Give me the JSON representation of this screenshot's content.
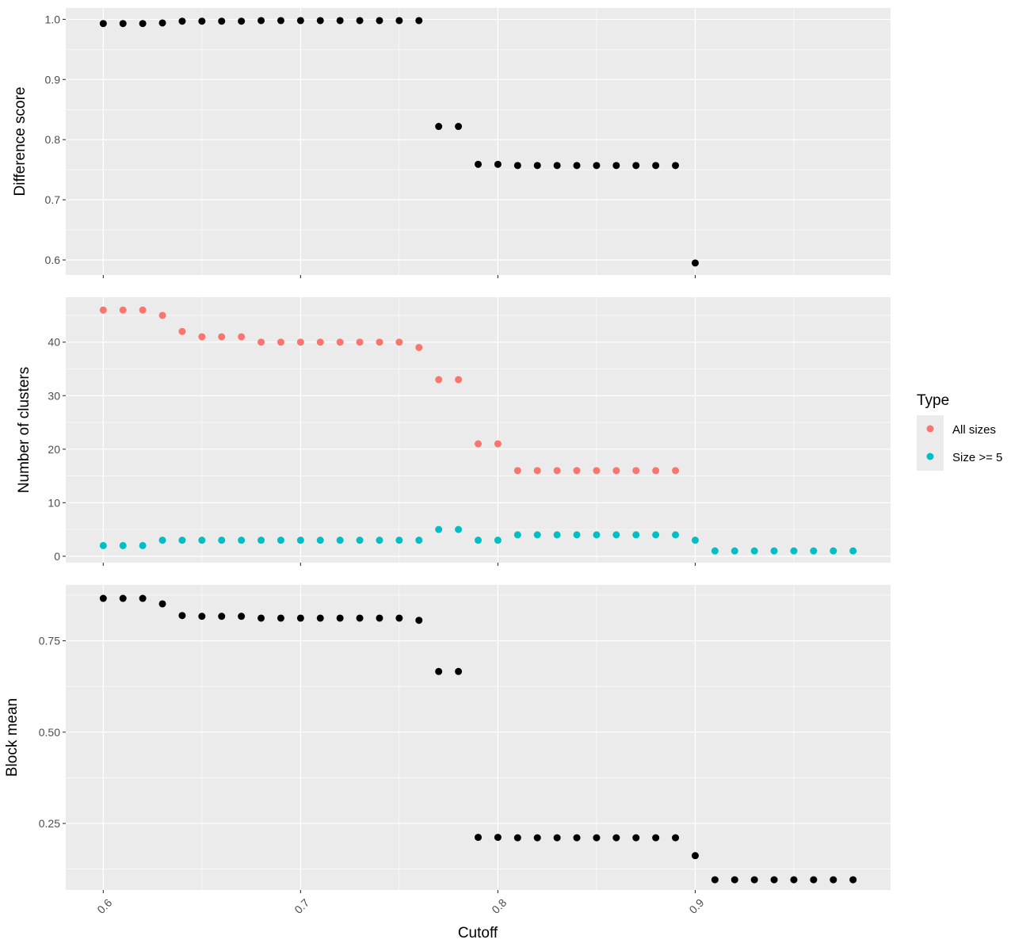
{
  "chart_data": [
    {
      "type": "scatter",
      "ylabel": "Difference score",
      "xlim": [
        0.581,
        0.999
      ],
      "ylim": [
        0.575,
        1.019
      ],
      "yticks": [
        0.6,
        0.7,
        0.8,
        0.9,
        1.0
      ],
      "ytick_labels": [
        "0.6",
        "0.7",
        "0.8",
        "0.9",
        "1.0"
      ],
      "series": [
        {
          "color": "#000000",
          "x": [
            0.6,
            0.61,
            0.62,
            0.63,
            0.64,
            0.65,
            0.66,
            0.67,
            0.68,
            0.69,
            0.7,
            0.71,
            0.72,
            0.73,
            0.74,
            0.75,
            0.76,
            0.77,
            0.78,
            0.79,
            0.8,
            0.81,
            0.82,
            0.83,
            0.84,
            0.85,
            0.86,
            0.87,
            0.88,
            0.89,
            0.9
          ],
          "y": [
            0.993,
            0.993,
            0.993,
            0.994,
            0.997,
            0.997,
            0.997,
            0.997,
            0.998,
            0.998,
            0.998,
            0.998,
            0.998,
            0.998,
            0.998,
            0.998,
            0.998,
            0.822,
            0.822,
            0.759,
            0.759,
            0.757,
            0.757,
            0.757,
            0.757,
            0.757,
            0.757,
            0.757,
            0.757,
            0.757,
            0.595
          ]
        }
      ]
    },
    {
      "type": "scatter",
      "ylabel": "Number of clusters",
      "xlim": [
        0.581,
        0.999
      ],
      "ylim": [
        -1.2,
        48.4
      ],
      "yticks": [
        0,
        10,
        20,
        30,
        40
      ],
      "ytick_labels": [
        "0",
        "10",
        "20",
        "30",
        "40"
      ],
      "series": [
        {
          "name": "All sizes",
          "color": "#F8766D",
          "x": [
            0.6,
            0.61,
            0.62,
            0.63,
            0.64,
            0.65,
            0.66,
            0.67,
            0.68,
            0.69,
            0.7,
            0.71,
            0.72,
            0.73,
            0.74,
            0.75,
            0.76,
            0.77,
            0.78,
            0.79,
            0.8,
            0.81,
            0.82,
            0.83,
            0.84,
            0.85,
            0.86,
            0.87,
            0.88,
            0.89
          ],
          "y": [
            46,
            46,
            46,
            45,
            42,
            41,
            41,
            41,
            40,
            40,
            40,
            40,
            40,
            40,
            40,
            40,
            39,
            33,
            33,
            21,
            21,
            16,
            16,
            16,
            16,
            16,
            16,
            16,
            16,
            16
          ]
        },
        {
          "name": "Size >= 5",
          "color": "#00BFC4",
          "x": [
            0.6,
            0.61,
            0.62,
            0.63,
            0.64,
            0.65,
            0.66,
            0.67,
            0.68,
            0.69,
            0.7,
            0.71,
            0.72,
            0.73,
            0.74,
            0.75,
            0.76,
            0.77,
            0.78,
            0.79,
            0.8,
            0.81,
            0.82,
            0.83,
            0.84,
            0.85,
            0.86,
            0.87,
            0.88,
            0.89,
            0.9,
            0.91,
            0.92,
            0.93,
            0.94,
            0.95,
            0.96,
            0.97,
            0.98
          ],
          "y": [
            2,
            2,
            2,
            3,
            3,
            3,
            3,
            3,
            3,
            3,
            3,
            3,
            3,
            3,
            3,
            3,
            3,
            5,
            5,
            3,
            3,
            4,
            4,
            4,
            4,
            4,
            4,
            4,
            4,
            4,
            3,
            1,
            1,
            1,
            1,
            1,
            1,
            1,
            1
          ]
        }
      ]
    },
    {
      "type": "scatter",
      "ylabel": "Block mean",
      "xlabel": "Cutoff",
      "xlim": [
        0.581,
        0.999
      ],
      "xticks": [
        0.6,
        0.7,
        0.8,
        0.9
      ],
      "xtick_labels": [
        "0.6",
        "0.7",
        "0.8",
        "0.9"
      ],
      "ylim": [
        0.068,
        0.903
      ],
      "yticks": [
        0.25,
        0.5,
        0.75
      ],
      "ytick_labels": [
        "0.25",
        "0.50",
        "0.75"
      ],
      "series": [
        {
          "color": "#000000",
          "x": [
            0.6,
            0.61,
            0.62,
            0.63,
            0.64,
            0.65,
            0.66,
            0.67,
            0.68,
            0.69,
            0.7,
            0.71,
            0.72,
            0.73,
            0.74,
            0.75,
            0.76,
            0.77,
            0.78,
            0.79,
            0.8,
            0.81,
            0.82,
            0.83,
            0.84,
            0.85,
            0.86,
            0.87,
            0.88,
            0.89,
            0.9,
            0.91,
            0.92,
            0.93,
            0.94,
            0.95,
            0.96,
            0.97,
            0.98
          ],
          "y": [
            0.866,
            0.866,
            0.866,
            0.851,
            0.819,
            0.817,
            0.817,
            0.817,
            0.812,
            0.812,
            0.812,
            0.812,
            0.812,
            0.812,
            0.812,
            0.812,
            0.806,
            0.666,
            0.666,
            0.212,
            0.212,
            0.211,
            0.211,
            0.211,
            0.211,
            0.211,
            0.211,
            0.211,
            0.211,
            0.211,
            0.162,
            0.096,
            0.096,
            0.096,
            0.096,
            0.096,
            0.096,
            0.096,
            0.096
          ]
        }
      ]
    }
  ],
  "legend": {
    "title": "Type",
    "placement": "right",
    "items": [
      {
        "label": "All sizes",
        "color": "#F8766D"
      },
      {
        "label": "Size >= 5",
        "color": "#00BFC4"
      }
    ]
  }
}
